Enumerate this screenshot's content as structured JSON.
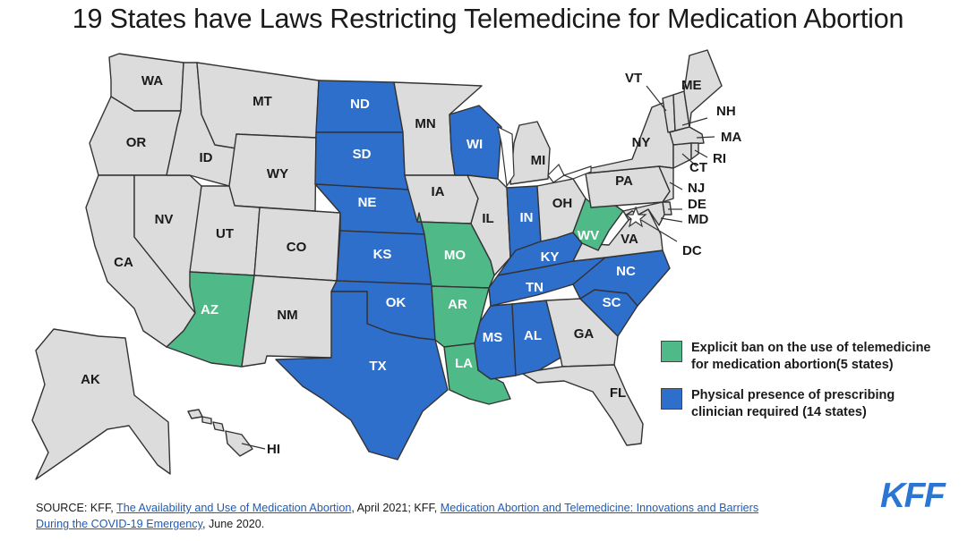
{
  "title": "19 States have Laws Restricting Telemedicine for Medication Abortion",
  "colors": {
    "none": "#dcdcdc",
    "ban": "#4fb987",
    "presence": "#2f6fcc",
    "border": "#333333",
    "source_link": "#1f5bb5",
    "brand": "#2a76d0"
  },
  "legend": [
    {
      "category": "ban",
      "text_line1": "Explicit ban on the use of telemedicine",
      "text_line2": "for medication abortion(5 states)"
    },
    {
      "category": "presence",
      "text_line1": "Physical presence of prescribing",
      "text_line2": "clinician required (14 states)"
    }
  ],
  "states": {
    "WA": "none",
    "OR": "none",
    "CA": "none",
    "ID": "none",
    "NV": "none",
    "MT": "none",
    "WY": "none",
    "UT": "none",
    "AZ": "ban",
    "CO": "none",
    "NM": "none",
    "ND": "presence",
    "SD": "presence",
    "NE": "presence",
    "KS": "presence",
    "OK": "presence",
    "TX": "presence",
    "MN": "none",
    "IA": "none",
    "MO": "ban",
    "AR": "ban",
    "LA": "ban",
    "WI": "presence",
    "IL": "none",
    "MS": "presence",
    "MI": "none",
    "IN": "presence",
    "KY": "presence",
    "TN": "presence",
    "AL": "presence",
    "OH": "none",
    "WV": "ban",
    "VA": "none",
    "NC": "presence",
    "SC": "presence",
    "GA": "none",
    "FL": "none",
    "PA": "none",
    "NY": "none",
    "VT": "none",
    "NH": "none",
    "ME": "none",
    "MA": "none",
    "CT": "none",
    "RI": "none",
    "NJ": "none",
    "DE": "none",
    "MD": "none",
    "DC": "none",
    "AK": "none",
    "HI": "none"
  },
  "source": {
    "prefix": "SOURCE: KFF, ",
    "link1": "The Availability and Use of Medication Abortion",
    "mid": ", April 2021; KFF, ",
    "link2a": "Medication Abortion and Telemedicine: Innovations and Barriers",
    "link2b": "During the COVID-19 Emergency",
    "suffix": ", June 2020."
  },
  "brand": "KFF"
}
